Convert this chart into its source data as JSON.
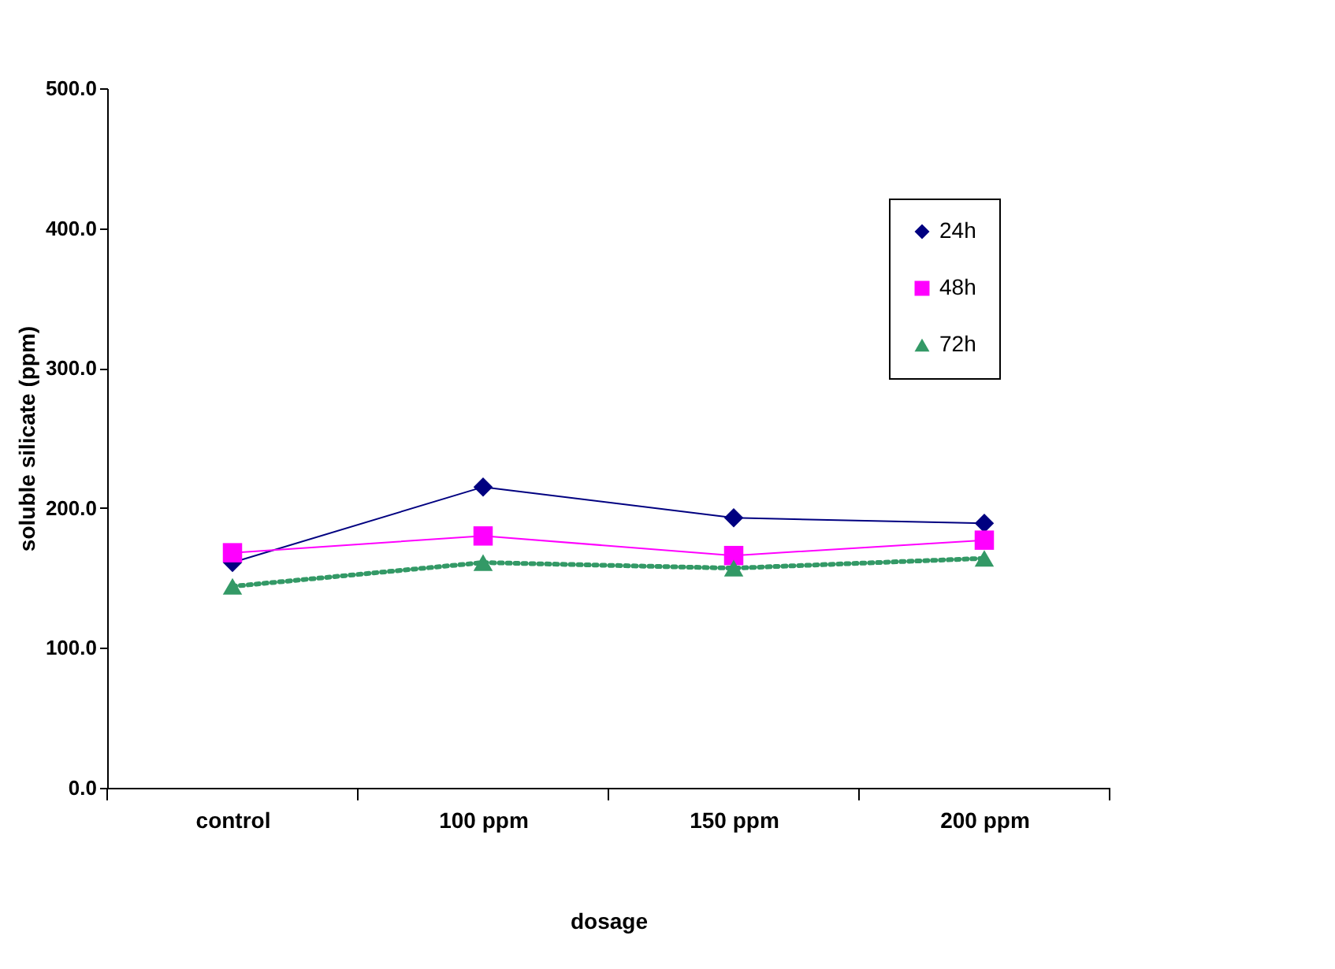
{
  "chart_data": {
    "type": "line",
    "xlabel": "dosage",
    "ylabel": "soluble silicate (ppm)",
    "categories": [
      "control",
      "100 ppm",
      "150 ppm",
      "200 ppm"
    ],
    "series": [
      {
        "name": "24h",
        "color": "#000080",
        "marker": "diamond",
        "line_style": "solid",
        "values": [
          161,
          215,
          193,
          189
        ]
      },
      {
        "name": "48h",
        "color": "#ff00ff",
        "marker": "square",
        "line_style": "solid",
        "values": [
          168,
          180,
          166,
          177
        ]
      },
      {
        "name": "72h",
        "color": "#339966",
        "marker": "triangle",
        "line_style": "dotted",
        "values": [
          144,
          161,
          157,
          164
        ]
      }
    ],
    "ylim": [
      0,
      500
    ],
    "yticks": [
      {
        "value": 0,
        "label": "0.0"
      },
      {
        "value": 100,
        "label": "100.0"
      },
      {
        "value": 200,
        "label": "200.0"
      },
      {
        "value": 300,
        "label": "300.0"
      },
      {
        "value": 400,
        "label": "400.0"
      },
      {
        "value": 500,
        "label": "500.0"
      }
    ],
    "grid": false,
    "legend": "top right"
  }
}
